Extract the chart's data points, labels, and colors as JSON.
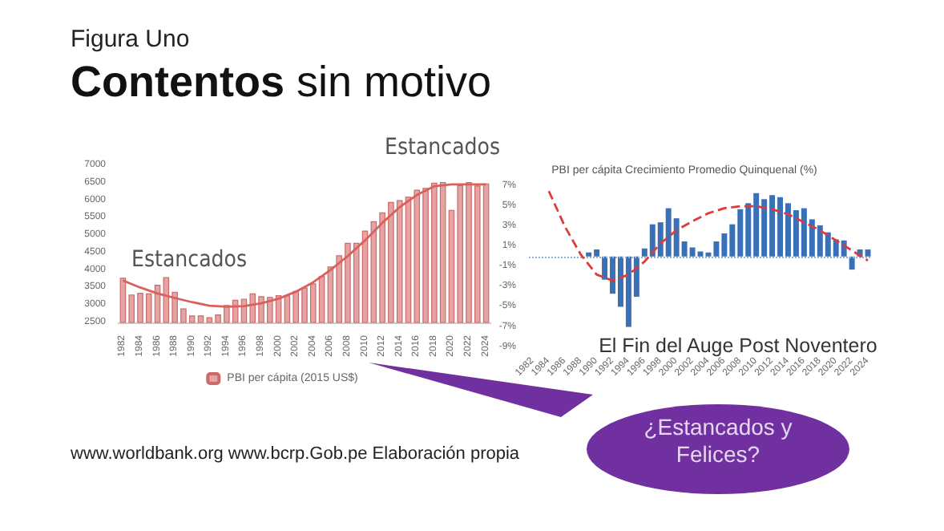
{
  "chart_data": [
    {
      "type": "bar",
      "title": "Contentos sin motivo",
      "subtitle": "Figura Uno",
      "categories": [
        "1982",
        null,
        "1984",
        null,
        "1986",
        null,
        "1988",
        null,
        "1990",
        null,
        "1992",
        null,
        "1994",
        null,
        "1996",
        null,
        "1998",
        null,
        "2000",
        null,
        "2002",
        null,
        "2004",
        null,
        "2006",
        null,
        "2008",
        null,
        "2010",
        null,
        "2012",
        null,
        "2014",
        null,
        "2016",
        null,
        "2018",
        null,
        "2020",
        null,
        "2022",
        null,
        "2024"
      ],
      "series": [
        {
          "name": "PBI per cápita (2015 US$)",
          "color": "#e6a3a3",
          "values": [
            3780,
            3300,
            3350,
            3330,
            3580,
            3800,
            3380,
            2900,
            2700,
            2700,
            2650,
            2730,
            3000,
            3150,
            3180,
            3330,
            3250,
            3230,
            3280,
            3270,
            3400,
            3500,
            3620,
            3830,
            4100,
            4420,
            4780,
            4780,
            5130,
            5400,
            5650,
            5950,
            6000,
            6100,
            6300,
            6350,
            6500,
            6520,
            5720,
            6430,
            6520,
            6420,
            6480
          ]
        },
        {
          "type": "line",
          "color": "#d9605c",
          "marker": "none",
          "line_style": "solid",
          "values": [
            3700,
            null,
            3500,
            null,
            3330,
            null,
            3200,
            null,
            3080,
            null,
            2980,
            null,
            2950,
            null,
            2970,
            null,
            3050,
            null,
            3180,
            null,
            3380,
            null,
            3650,
            null,
            4000,
            null,
            4400,
            null,
            4850,
            null,
            5350,
            null,
            5800,
            null,
            6150,
            null,
            6400,
            null,
            6450,
            null,
            6450,
            null,
            6450
          ]
        }
      ],
      "ylim": [
        2500,
        7000
      ],
      "yticks": [
        2500,
        3000,
        3500,
        4000,
        4500,
        5000,
        5500,
        6000,
        6500,
        7000
      ],
      "legend": "bottom",
      "annotations": [
        "Estancados",
        "Estancados",
        "www.worldbank.org  www.bcrp.Gob.pe  Elaboración propia",
        "¿Estancados y Felices?"
      ]
    },
    {
      "type": "bar",
      "title": "PBI per cápita Crecimiento Promedio Quinquenal (%)",
      "categories": [
        "1982",
        null,
        "1984",
        null,
        "1986",
        null,
        "1988",
        null,
        "1990",
        null,
        "1992",
        null,
        "1994",
        null,
        "1996",
        null,
        "1998",
        null,
        "2000",
        null,
        "2002",
        null,
        "2004",
        null,
        "2006",
        null,
        "2008",
        null,
        "2010",
        null,
        "2012",
        null,
        "2014",
        null,
        "2016",
        null,
        "2018",
        null,
        "2020",
        null,
        "2022",
        null,
        "2024"
      ],
      "series": [
        {
          "color": "#3a70b5",
          "values": [
            null,
            null,
            null,
            null,
            null,
            null,
            null,
            0.4,
            0.7,
            -2.3,
            -3.7,
            -5,
            -7,
            -4,
            0.8,
            3.2,
            3.4,
            4.8,
            3.8,
            1.5,
            0.9,
            0.5,
            0.4,
            1.5,
            2.3,
            3.2,
            4.7,
            5.3,
            6.3,
            5.7,
            6.1,
            5.9,
            5.3,
            4.6,
            4.8,
            3.7,
            3.1,
            2.4,
            1.7,
            1.6,
            -1.3,
            0.7,
            0.7
          ]
        },
        {
          "type": "line",
          "color": "#e03a3a",
          "marker": "none",
          "line_style": "dashed",
          "values": [
            null,
            null,
            6.5,
            null,
            3.0,
            null,
            0.2,
            null,
            -1.8,
            null,
            -2.4,
            null,
            -1.8,
            null,
            -0.5,
            null,
            1.3,
            null,
            2.6,
            null,
            3.5,
            null,
            4.3,
            null,
            4.8,
            null,
            5.0,
            null,
            5.0,
            null,
            4.7,
            null,
            4.2,
            null,
            3.4,
            null,
            2.6,
            null,
            1.6,
            null,
            0.6,
            null,
            -0.4
          ]
        }
      ],
      "ref_lines": [
        {
          "axis": "y",
          "value": 0,
          "color": "#8fb0d9",
          "line_style": "dotted"
        }
      ],
      "ylim": [
        -9,
        7
      ],
      "yticks": [
        {
          "value": -9,
          "label": "-9%"
        },
        {
          "value": -7,
          "label": "-7%"
        },
        {
          "value": -5,
          "label": "-5%"
        },
        {
          "value": -3,
          "label": "-3%"
        },
        {
          "value": -1,
          "label": "-1%"
        },
        {
          "value": 1,
          "label": "1%"
        },
        {
          "value": 3,
          "label": "3%"
        },
        {
          "value": 5,
          "label": "5%"
        },
        {
          "value": 7,
          "label": "7%"
        }
      ],
      "annotations": [
        "El Fin del Auge Post Noventero"
      ]
    }
  ]
}
